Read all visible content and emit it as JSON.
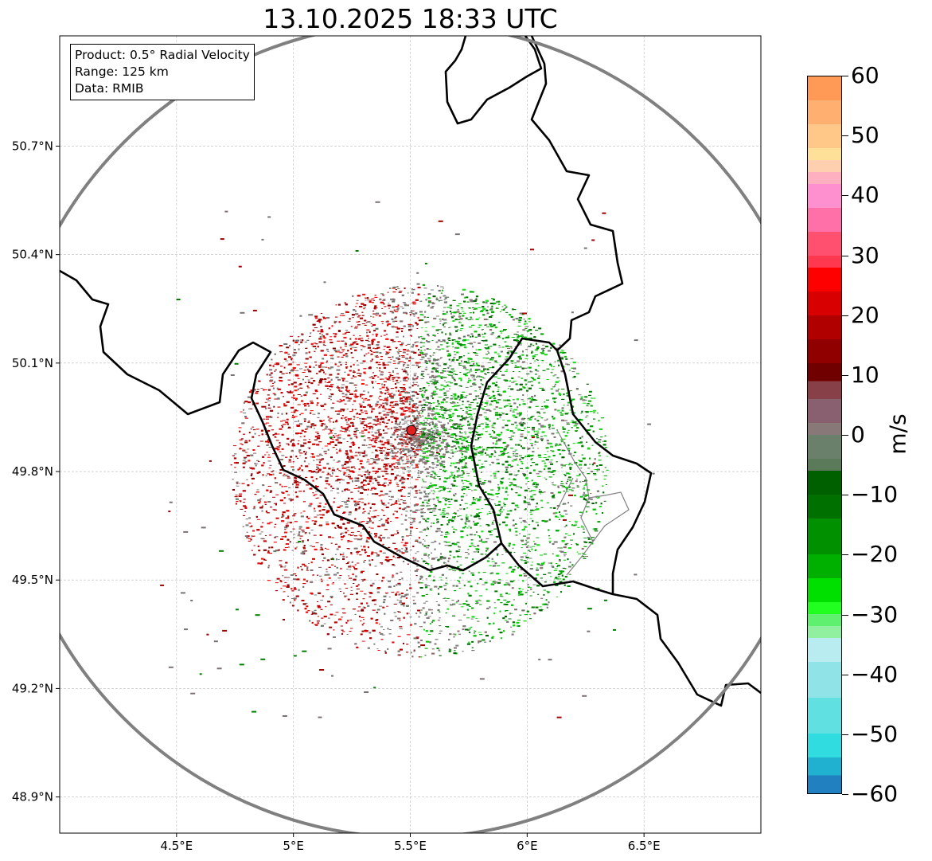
{
  "title": "13.10.2025 18:33 UTC",
  "info_box": {
    "product": "Product: 0.5° Radial Velocity",
    "range": "Range: 125 km",
    "data": "Data: RMIB"
  },
  "map": {
    "lon_range": [
      4.0,
      7.0
    ],
    "lat_range": [
      48.8,
      51.005
    ],
    "radar_site": {
      "lon": 5.505,
      "lat": 49.914
    },
    "range_km": 125,
    "x_ticks": [
      {
        "value": 4.5,
        "label": "4.5°E"
      },
      {
        "value": 5.0,
        "label": "5°E"
      },
      {
        "value": 5.5,
        "label": "5.5°E"
      },
      {
        "value": 6.0,
        "label": "6°E"
      },
      {
        "value": 6.5,
        "label": "6.5°E"
      }
    ],
    "y_ticks": [
      {
        "value": 50.7,
        "label": "50.7°N"
      },
      {
        "value": 50.4,
        "label": "50.4°N"
      },
      {
        "value": 50.1,
        "label": "50.1°N"
      },
      {
        "value": 49.8,
        "label": "49.8°N"
      },
      {
        "value": 49.5,
        "label": "49.5°N"
      },
      {
        "value": 49.2,
        "label": "49.2°N"
      },
      {
        "value": 48.9,
        "label": "48.9°N"
      }
    ],
    "colors": {
      "range_ring": "#808080",
      "border": "#000000",
      "radar_marker": "#e02020"
    }
  },
  "colorbar": {
    "label": "m/s",
    "range": [
      -60,
      60
    ],
    "ticks": [
      {
        "value": 60,
        "label": "60"
      },
      {
        "value": 50,
        "label": "50"
      },
      {
        "value": 40,
        "label": "40"
      },
      {
        "value": 30,
        "label": "30"
      },
      {
        "value": 20,
        "label": "20"
      },
      {
        "value": 10,
        "label": "10"
      },
      {
        "value": 0,
        "label": "0"
      },
      {
        "value": -10,
        "label": "−10"
      },
      {
        "value": -20,
        "label": "−20"
      },
      {
        "value": -30,
        "label": "−30"
      },
      {
        "value": -40,
        "label": "−40"
      },
      {
        "value": -50,
        "label": "−50"
      },
      {
        "value": -60,
        "label": "−60"
      }
    ],
    "stops": [
      {
        "from": 56,
        "to": 60,
        "color": "#ff9955"
      },
      {
        "from": 52,
        "to": 56,
        "color": "#ffb070"
      },
      {
        "from": 48,
        "to": 52,
        "color": "#ffc888"
      },
      {
        "from": 46,
        "to": 48,
        "color": "#ffe099"
      },
      {
        "from": 44,
        "to": 46,
        "color": "#ffd0b0"
      },
      {
        "from": 42,
        "to": 44,
        "color": "#ffb0c0"
      },
      {
        "from": 38,
        "to": 42,
        "color": "#ff90d0"
      },
      {
        "from": 34,
        "to": 38,
        "color": "#ff70a8"
      },
      {
        "from": 30,
        "to": 34,
        "color": "#ff5070"
      },
      {
        "from": 28,
        "to": 30,
        "color": "#ff3850"
      },
      {
        "from": 24,
        "to": 28,
        "color": "#ff0000"
      },
      {
        "from": 20,
        "to": 24,
        "color": "#d80000"
      },
      {
        "from": 16,
        "to": 20,
        "color": "#b00000"
      },
      {
        "from": 12,
        "to": 16,
        "color": "#900000"
      },
      {
        "from": 9,
        "to": 12,
        "color": "#700000"
      },
      {
        "from": 6,
        "to": 9,
        "color": "#884048"
      },
      {
        "from": 2,
        "to": 6,
        "color": "#886070"
      },
      {
        "from": 0,
        "to": 2,
        "color": "#887878"
      },
      {
        "from": -4,
        "to": 0,
        "color": "#6a806a"
      },
      {
        "from": -6,
        "to": -4,
        "color": "#5a7a5a"
      },
      {
        "from": -10,
        "to": -6,
        "color": "#006000"
      },
      {
        "from": -14,
        "to": -10,
        "color": "#007000"
      },
      {
        "from": -20,
        "to": -14,
        "color": "#009000"
      },
      {
        "from": -24,
        "to": -20,
        "color": "#00b000"
      },
      {
        "from": -28,
        "to": -24,
        "color": "#00e000"
      },
      {
        "from": -30,
        "to": -28,
        "color": "#20ff20"
      },
      {
        "from": -32,
        "to": -30,
        "color": "#60f070"
      },
      {
        "from": -34,
        "to": -32,
        "color": "#90f0a0"
      },
      {
        "from": -38,
        "to": -34,
        "color": "#b8ecf0"
      },
      {
        "from": -44,
        "to": -38,
        "color": "#90e4e8"
      },
      {
        "from": -50,
        "to": -44,
        "color": "#60e0e0"
      },
      {
        "from": -54,
        "to": -50,
        "color": "#30dce0"
      },
      {
        "from": -57,
        "to": -54,
        "color": "#20b0d0"
      },
      {
        "from": -60,
        "to": -57,
        "color": "#2080c0"
      }
    ]
  }
}
